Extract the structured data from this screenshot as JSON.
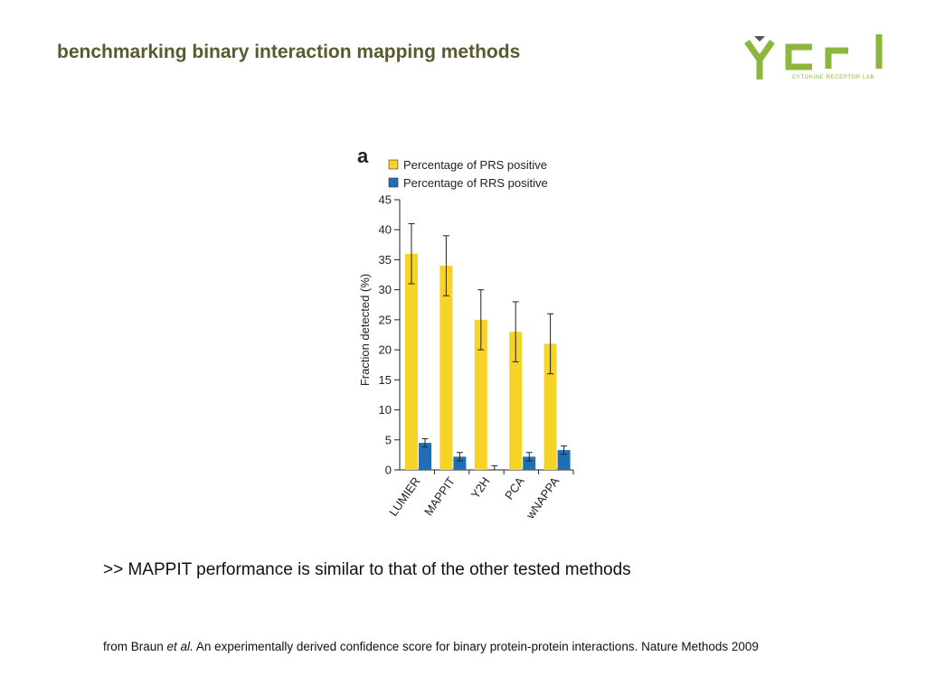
{
  "slide": {
    "title": "benchmarking binary interaction mapping methods",
    "conclusion": ">> MAPPIT performance is similar to that of the other tested methods",
    "citation_prefix": "from Braun ",
    "citation_authors_italic": "et al.",
    "citation_rest": " An experimentally derived confidence score for binary protein-protein interactions. Nature Methods 2009"
  },
  "logo": {
    "letters": "YCRL",
    "subtitle": "CYTOKINE RECEPTOR LAB",
    "color": "#8db63c"
  },
  "chart_data": {
    "type": "bar",
    "panel_label": "a",
    "categories": [
      "LUMIER",
      "MAPPIT",
      "Y2H",
      "PCA",
      "wNAPPA"
    ],
    "series": [
      {
        "name": "Percentage of PRS positive",
        "color": "#f5d327",
        "values": [
          36,
          34,
          25,
          23,
          21
        ],
        "error": [
          5,
          5,
          5,
          5,
          5
        ]
      },
      {
        "name": "Percentage of RRS positive",
        "color": "#1f6fb2",
        "values": [
          4.5,
          2.2,
          0,
          2.2,
          3.3
        ],
        "error": [
          0.7,
          0.7,
          0.7,
          0.7,
          0.7
        ]
      }
    ],
    "ylabel": "Fraction detected (%)",
    "xlabel": "",
    "ylim": [
      0,
      45
    ],
    "yticks": [
      0,
      5,
      10,
      15,
      20,
      25,
      30,
      35,
      40,
      45
    ],
    "legend_position": "top-left",
    "grid": false
  }
}
